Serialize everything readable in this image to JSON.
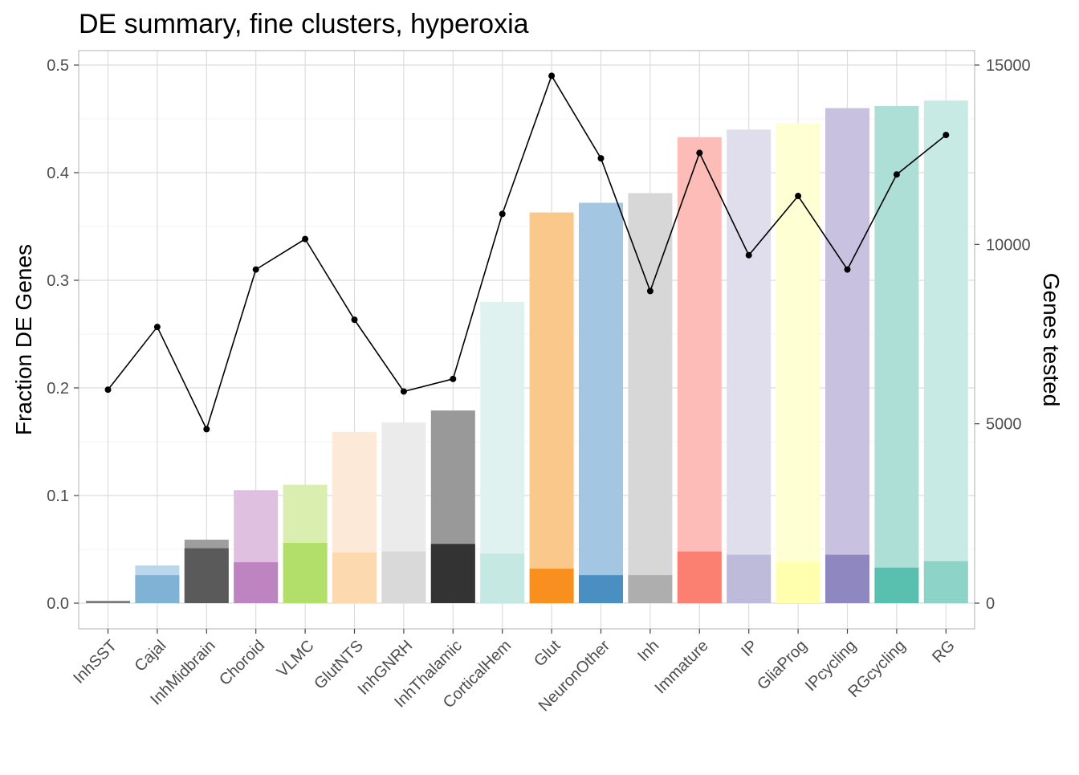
{
  "chart_data": {
    "type": "bar",
    "title": "DE summary, fine clusters, hyperoxia",
    "ylabel": "Fraction DE Genes",
    "y2label": "Genes tested",
    "xlabel": "",
    "ylim": [
      0,
      0.5
    ],
    "y2lim": [
      0,
      15000
    ],
    "yticks": [
      "0.0",
      "0.1",
      "0.2",
      "0.3",
      "0.4",
      "0.5"
    ],
    "y2ticks": [
      "0",
      "5000",
      "10000",
      "15000"
    ],
    "grid": true,
    "legend": "none",
    "categories": [
      "InhSST",
      "Cajal",
      "InhMidbrain",
      "Choroid",
      "VLMC",
      "GlutNTS",
      "InhGNRH",
      "InhThalamic",
      "CorticalHem",
      "Glut",
      "NeuronOther",
      "Inh",
      "Immature",
      "IP",
      "GliaProg",
      "IPcycling",
      "RGcycling",
      "RG"
    ],
    "series": [
      {
        "values": [
          0.002,
          0.035,
          0.059,
          0.105,
          0.11,
          0.159,
          0.168,
          0.179,
          0.28,
          0.363,
          0.372,
          0.381,
          0.433,
          0.44,
          0.446,
          0.46,
          0.462,
          0.467
        ]
      },
      {
        "values": [
          0.002,
          0.026,
          0.051,
          0.038,
          0.056,
          0.047,
          0.048,
          0.055,
          0.046,
          0.032,
          0.026,
          0.026,
          0.048,
          0.045,
          0.038,
          0.045,
          0.033,
          0.039
        ]
      },
      {
        "axis": "right",
        "type": "line",
        "values": [
          5950,
          7700,
          4850,
          9300,
          10150,
          7900,
          5900,
          6250,
          10850,
          14700,
          12400,
          8700,
          12550,
          9700,
          11350,
          9300,
          11950,
          13050
        ]
      }
    ],
    "colors_light": [
      "#999999",
      "#bcd7ea",
      "#9e9e9e",
      "#dfc0e1",
      "#daeeb0",
      "#fde9d8",
      "#ebebeb",
      "#999999",
      "#e0f2ef",
      "#fac88b",
      "#a3c6e2",
      "#d7d7d7",
      "#febcb8",
      "#e0dded",
      "#ffffd4",
      "#c8c2e0",
      "#addfd7",
      "#c8eae5"
    ],
    "colors_dark": [
      "#7a7a7a",
      "#80b2d6",
      "#5a5a5a",
      "#be83c1",
      "#b2df6a",
      "#fdd9b0",
      "#d9d9d9",
      "#333333",
      "#c5e8e2",
      "#f88f1e",
      "#4a8fc1",
      "#aeaeae",
      "#fb8071",
      "#bebad9",
      "#ffffad",
      "#8f88c0",
      "#59bfae",
      "#8ed3c7"
    ],
    "line_color": "#000000"
  }
}
